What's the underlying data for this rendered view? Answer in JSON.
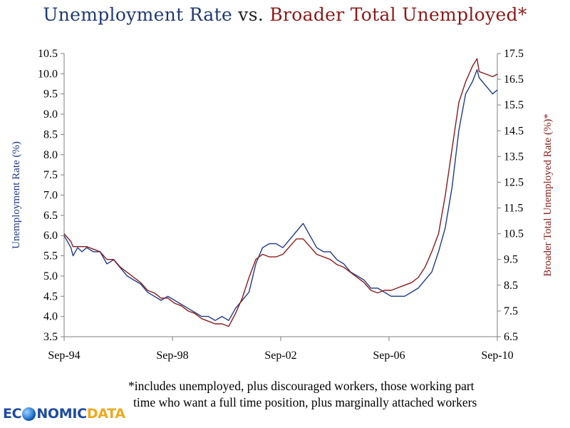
{
  "title": {
    "part_a": "Unemployment Rate",
    "part_b": " vs. ",
    "part_c": "Broader Total Unemployed*"
  },
  "colors": {
    "unemployment": "#1f3a8a",
    "broader": "#8b1a1a",
    "axis": "#7f7f7f"
  },
  "footnote": {
    "line1": "*includes unemployed, plus discouraged workers, those working part",
    "line2": "time who want a full time position, plus marginally attached workers"
  },
  "logo": {
    "part1": "EC",
    "part2": "NOMIC",
    "part3": "DATA"
  },
  "chart_data": {
    "type": "line",
    "title": "Unemployment Rate vs. Broader Total Unemployed*",
    "ylabel_left": "Unemployment Rate (%)",
    "ylabel_right": "Broader Total Unemployed Rate (%)*",
    "y_left_range": [
      3.5,
      10.5
    ],
    "y_right_range": [
      6.5,
      17.5
    ],
    "y_left_ticks": [
      "3.5",
      "4.0",
      "4.5",
      "5.0",
      "5.5",
      "6.0",
      "6.5",
      "7.0",
      "7.5",
      "8.0",
      "8.5",
      "9.0",
      "9.5",
      "10.0",
      "10.5"
    ],
    "y_right_ticks": [
      "6.5",
      "7.5",
      "8.5",
      "9.5",
      "10.5",
      "11.5",
      "12.5",
      "13.5",
      "14.5",
      "15.5",
      "16.5",
      "17.5"
    ],
    "x_ticks": [
      {
        "label": "Sep-94",
        "x": 1994.67
      },
      {
        "label": "Sep-98",
        "x": 1998.67
      },
      {
        "label": "Sep-02",
        "x": 2002.67
      },
      {
        "label": "Sep-06",
        "x": 2006.67
      },
      {
        "label": "Sep-10",
        "x": 2010.67
      }
    ],
    "x_range": [
      1994.67,
      2010.67
    ],
    "grid": false,
    "series": [
      {
        "name": "Unemployment Rate",
        "axis": "left",
        "x": [
          1994.67,
          1994.92,
          1995.0,
          1995.17,
          1995.33,
          1995.5,
          1995.75,
          1996.0,
          1996.25,
          1996.5,
          1996.75,
          1997.0,
          1997.25,
          1997.5,
          1997.75,
          1998.0,
          1998.25,
          1998.5,
          1998.75,
          1999.0,
          1999.25,
          1999.5,
          1999.75,
          2000.0,
          2000.25,
          2000.5,
          2000.75,
          2001.0,
          2001.25,
          2001.5,
          2001.75,
          2002.0,
          2002.25,
          2002.5,
          2002.75,
          2003.0,
          2003.25,
          2003.5,
          2003.75,
          2004.0,
          2004.25,
          2004.5,
          2004.75,
          2005.0,
          2005.25,
          2005.5,
          2005.75,
          2006.0,
          2006.25,
          2006.5,
          2006.75,
          2007.0,
          2007.25,
          2007.5,
          2007.75,
          2008.0,
          2008.25,
          2008.5,
          2008.75,
          2009.0,
          2009.25,
          2009.5,
          2009.75,
          2009.92,
          2010.0,
          2010.25,
          2010.5,
          2010.67
        ],
        "values": [
          6.0,
          5.7,
          5.5,
          5.7,
          5.6,
          5.7,
          5.6,
          5.6,
          5.3,
          5.4,
          5.2,
          5.0,
          4.9,
          4.8,
          4.6,
          4.5,
          4.4,
          4.5,
          4.4,
          4.3,
          4.2,
          4.1,
          4.0,
          4.0,
          3.9,
          4.0,
          3.9,
          4.2,
          4.4,
          4.6,
          5.3,
          5.7,
          5.8,
          5.8,
          5.7,
          5.9,
          6.1,
          6.3,
          6.0,
          5.7,
          5.6,
          5.6,
          5.4,
          5.3,
          5.1,
          5.0,
          4.9,
          4.7,
          4.7,
          4.6,
          4.5,
          4.5,
          4.5,
          4.6,
          4.7,
          4.9,
          5.1,
          5.6,
          6.2,
          7.2,
          8.6,
          9.5,
          9.8,
          10.1,
          9.9,
          9.7,
          9.5,
          9.6
        ]
      },
      {
        "name": "Broader Total Unemployed Rate",
        "axis": "right",
        "x": [
          1994.67,
          1994.92,
          1995.0,
          1995.17,
          1995.33,
          1995.5,
          1995.75,
          1996.0,
          1996.25,
          1996.5,
          1996.75,
          1997.0,
          1997.25,
          1997.5,
          1997.75,
          1998.0,
          1998.25,
          1998.5,
          1998.75,
          1999.0,
          1999.25,
          1999.5,
          1999.75,
          2000.0,
          2000.25,
          2000.5,
          2000.75,
          2001.0,
          2001.25,
          2001.5,
          2001.75,
          2002.0,
          2002.25,
          2002.5,
          2002.75,
          2003.0,
          2003.25,
          2003.5,
          2003.75,
          2004.0,
          2004.25,
          2004.5,
          2004.75,
          2005.0,
          2005.25,
          2005.5,
          2005.75,
          2006.0,
          2006.25,
          2006.5,
          2006.75,
          2007.0,
          2007.25,
          2007.5,
          2007.75,
          2008.0,
          2008.25,
          2008.5,
          2008.75,
          2009.0,
          2009.25,
          2009.5,
          2009.75,
          2009.92,
          2010.0,
          2010.25,
          2010.5,
          2010.67
        ],
        "values": [
          10.5,
          10.2,
          10.0,
          10.0,
          10.0,
          10.0,
          9.9,
          9.8,
          9.5,
          9.5,
          9.2,
          9.0,
          8.8,
          8.6,
          8.3,
          8.2,
          8.0,
          8.0,
          7.8,
          7.7,
          7.5,
          7.4,
          7.2,
          7.1,
          7.0,
          7.0,
          6.9,
          7.4,
          8.0,
          8.8,
          9.5,
          9.7,
          9.6,
          9.6,
          9.7,
          10.0,
          10.3,
          10.3,
          10.0,
          9.7,
          9.6,
          9.5,
          9.3,
          9.2,
          9.0,
          8.8,
          8.6,
          8.3,
          8.2,
          8.3,
          8.3,
          8.4,
          8.5,
          8.6,
          8.8,
          9.2,
          9.8,
          10.5,
          12.0,
          13.8,
          15.6,
          16.4,
          17.0,
          17.3,
          16.8,
          16.7,
          16.6,
          16.7
        ]
      }
    ]
  }
}
